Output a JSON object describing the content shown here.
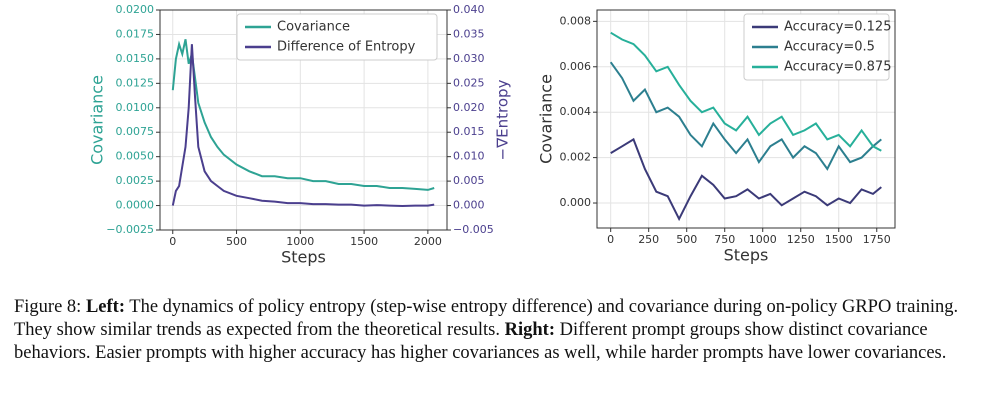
{
  "chart_data": [
    {
      "type": "line",
      "xlabel": "Steps",
      "ylabel": "Covariance",
      "y2label": "−∇Entropy",
      "x": [
        0,
        25,
        50,
        75,
        100,
        125,
        150,
        175,
        200,
        250,
        300,
        350,
        400,
        500,
        600,
        700,
        800,
        900,
        1000,
        1100,
        1200,
        1300,
        1400,
        1500,
        1600,
        1700,
        1800,
        1900,
        2000,
        2050
      ],
      "series": [
        {
          "name": "Covariance",
          "color": "#2ea394",
          "values": [
            0.0118,
            0.015,
            0.0165,
            0.0155,
            0.017,
            0.0145,
            0.0155,
            0.013,
            0.0105,
            0.0085,
            0.007,
            0.006,
            0.0052,
            0.0042,
            0.0035,
            0.003,
            0.003,
            0.0028,
            0.0028,
            0.0025,
            0.0025,
            0.0022,
            0.0022,
            0.002,
            0.002,
            0.0018,
            0.0018,
            0.0017,
            0.0016,
            0.0018
          ]
        },
        {
          "name": "Difference of Entropy",
          "color": "#4b3f8e",
          "axis": "y2",
          "values": [
            0.0,
            0.003,
            0.004,
            0.008,
            0.012,
            0.02,
            0.033,
            0.022,
            0.012,
            0.007,
            0.005,
            0.004,
            0.003,
            0.002,
            0.0015,
            0.001,
            0.0008,
            0.0005,
            0.0005,
            0.0003,
            0.0003,
            0.0002,
            0.0002,
            0.0,
            0.0001,
            0.0,
            -0.0001,
            0.0,
            0.0,
            0.0002
          ]
        }
      ],
      "xlim": [
        -100,
        2150
      ],
      "xticks": [
        0,
        500,
        1000,
        1500,
        2000
      ],
      "ylim": [
        -0.0025,
        0.02
      ],
      "yticks": [
        {
          "value": -0.0025,
          "label": "−0.0025"
        },
        {
          "value": 0,
          "label": "0.0000"
        },
        {
          "value": 0.0025,
          "label": "0.0025"
        },
        {
          "value": 0.005,
          "label": "0.0050"
        },
        {
          "value": 0.0075,
          "label": "0.0075"
        },
        {
          "value": 0.01,
          "label": "0.0100"
        },
        {
          "value": 0.0125,
          "label": "0.0125"
        },
        {
          "value": 0.015,
          "label": "0.0150"
        },
        {
          "value": 0.0175,
          "label": "0.0175"
        },
        {
          "value": 0.02,
          "label": "0.0200"
        }
      ],
      "y2lim": [
        -0.005,
        0.04
      ],
      "y2ticks": [
        {
          "value": -0.005,
          "label": "−0.005"
        },
        {
          "value": 0,
          "label": "0.000"
        },
        {
          "value": 0.005,
          "label": "0.005"
        },
        {
          "value": 0.01,
          "label": "0.010"
        },
        {
          "value": 0.015,
          "label": "0.015"
        },
        {
          "value": 0.02,
          "label": "0.020"
        },
        {
          "value": 0.025,
          "label": "0.025"
        },
        {
          "value": 0.03,
          "label": "0.030"
        },
        {
          "value": 0.035,
          "label": "0.035"
        },
        {
          "value": 0.04,
          "label": "0.040"
        }
      ],
      "grid": true,
      "legend": "upper right"
    },
    {
      "type": "line",
      "xlabel": "Steps",
      "ylabel": "Covariance",
      "x": [
        0,
        75,
        150,
        225,
        300,
        375,
        450,
        525,
        600,
        675,
        750,
        825,
        900,
        975,
        1050,
        1125,
        1200,
        1275,
        1350,
        1425,
        1500,
        1575,
        1650,
        1725,
        1780
      ],
      "series": [
        {
          "name": "Accuracy=0.125",
          "color": "#3b3a78",
          "values": [
            0.0022,
            0.0025,
            0.0028,
            0.0015,
            0.0005,
            0.0003,
            -0.0007,
            0.0003,
            0.0012,
            0.0008,
            0.0002,
            0.0003,
            0.0006,
            0.0002,
            0.0004,
            -0.0001,
            0.0002,
            0.0005,
            0.0003,
            -0.0001,
            0.0002,
            0.0,
            0.0006,
            0.0004,
            0.0007
          ]
        },
        {
          "name": "Accuracy=0.5",
          "color": "#2c7f8f",
          "values": [
            0.0062,
            0.0055,
            0.0045,
            0.005,
            0.004,
            0.0042,
            0.0038,
            0.003,
            0.0025,
            0.0035,
            0.0028,
            0.0022,
            0.0028,
            0.0018,
            0.0025,
            0.0028,
            0.002,
            0.0025,
            0.0022,
            0.0015,
            0.0025,
            0.0018,
            0.002,
            0.0025,
            0.0028
          ]
        },
        {
          "name": "Accuracy=0.875",
          "color": "#27b09a",
          "values": [
            0.0075,
            0.0072,
            0.007,
            0.0065,
            0.0058,
            0.006,
            0.0052,
            0.0045,
            0.004,
            0.0042,
            0.0035,
            0.0032,
            0.0038,
            0.003,
            0.0035,
            0.0038,
            0.003,
            0.0032,
            0.0035,
            0.0028,
            0.003,
            0.0025,
            0.0032,
            0.0025,
            0.0023
          ]
        }
      ],
      "xlim": [
        -90,
        1870
      ],
      "xticks": [
        0,
        250,
        500,
        750,
        1000,
        1250,
        1500,
        1750
      ],
      "ylim": [
        -0.0011,
        0.0085
      ],
      "yticks": [
        {
          "value": 0,
          "label": "0.000"
        },
        {
          "value": 0.002,
          "label": "0.002"
        },
        {
          "value": 0.004,
          "label": "0.004"
        },
        {
          "value": 0.006,
          "label": "0.006"
        },
        {
          "value": 0.008,
          "label": "0.008"
        }
      ],
      "grid": true,
      "legend": "upper right"
    }
  ],
  "caption": {
    "label": "Figure 8:",
    "left_heading": "Left:",
    "left_text": "The dynamics of policy entropy (step-wise entropy difference) and covariance during on-policy GRPO training. They show similar trends as expected from the theoretical results.",
    "right_heading": "Right:",
    "right_text": "Different prompt groups show distinct covariance behaviors. Easier prompts with higher accuracy has higher covariances as well, while harder prompts have lower covariances."
  }
}
